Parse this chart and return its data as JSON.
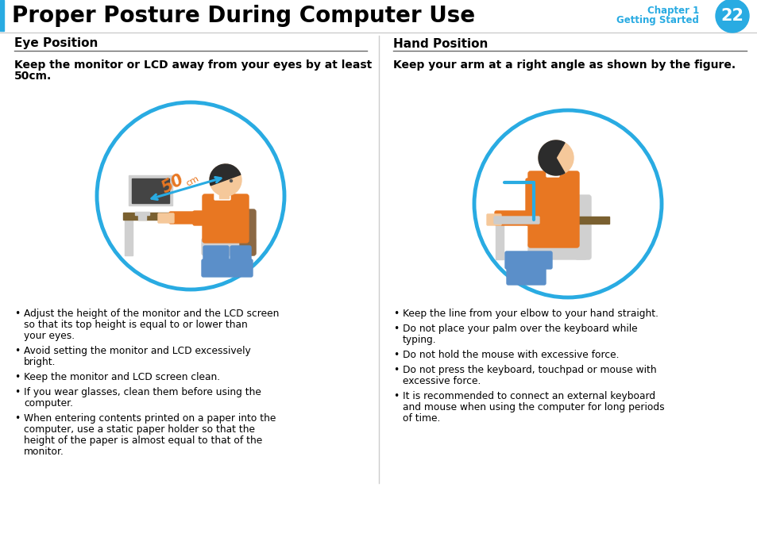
{
  "title": "Proper Posture During Computer Use",
  "chapter": "Chapter 1",
  "chapter_sub": "Getting Started",
  "page_num": "22",
  "blue": "#29ABE2",
  "bg": "#ffffff",
  "left_section_title": "Eye Position",
  "right_section_title": "Hand Position",
  "left_subtitle_line1": "Keep the monitor or LCD away from your eyes by at least",
  "left_subtitle_line2": "50cm.",
  "right_subtitle": "Keep your arm at a right angle as shown by the figure.",
  "left_bullets": [
    "Adjust the height of the monitor and the LCD screen so that its top height is equal to or lower than your eyes.",
    "Avoid setting the monitor and LCD excessively bright.",
    "Keep the monitor and LCD screen clean.",
    "If you wear glasses, clean them before using the computer.",
    "When entering contents printed on a paper into the computer, use a static paper holder so that the height of the paper is almost equal to that of the monitor."
  ],
  "right_bullets": [
    "Keep the line from your elbow to your hand straight.",
    "Do not place your palm over the keyboard while typing.",
    "Do not hold the mouse with excessive force.",
    "Do not press the keyboard, touchpad or mouse with excessive force.",
    "It is recommended to connect an external keyboard and mouse when using the computer for long periods of time."
  ],
  "orange": "#E87722",
  "skin": "#F5C89A",
  "dark_hair": "#2C2C2C",
  "brown": "#8B6844",
  "gray": "#A0A0A0",
  "lt_gray": "#D0D0D0",
  "blue_leg": "#5B8FC9",
  "dark_desk": "#7A6030",
  "chair_brown": "#8B7355",
  "bullet_char": "•"
}
